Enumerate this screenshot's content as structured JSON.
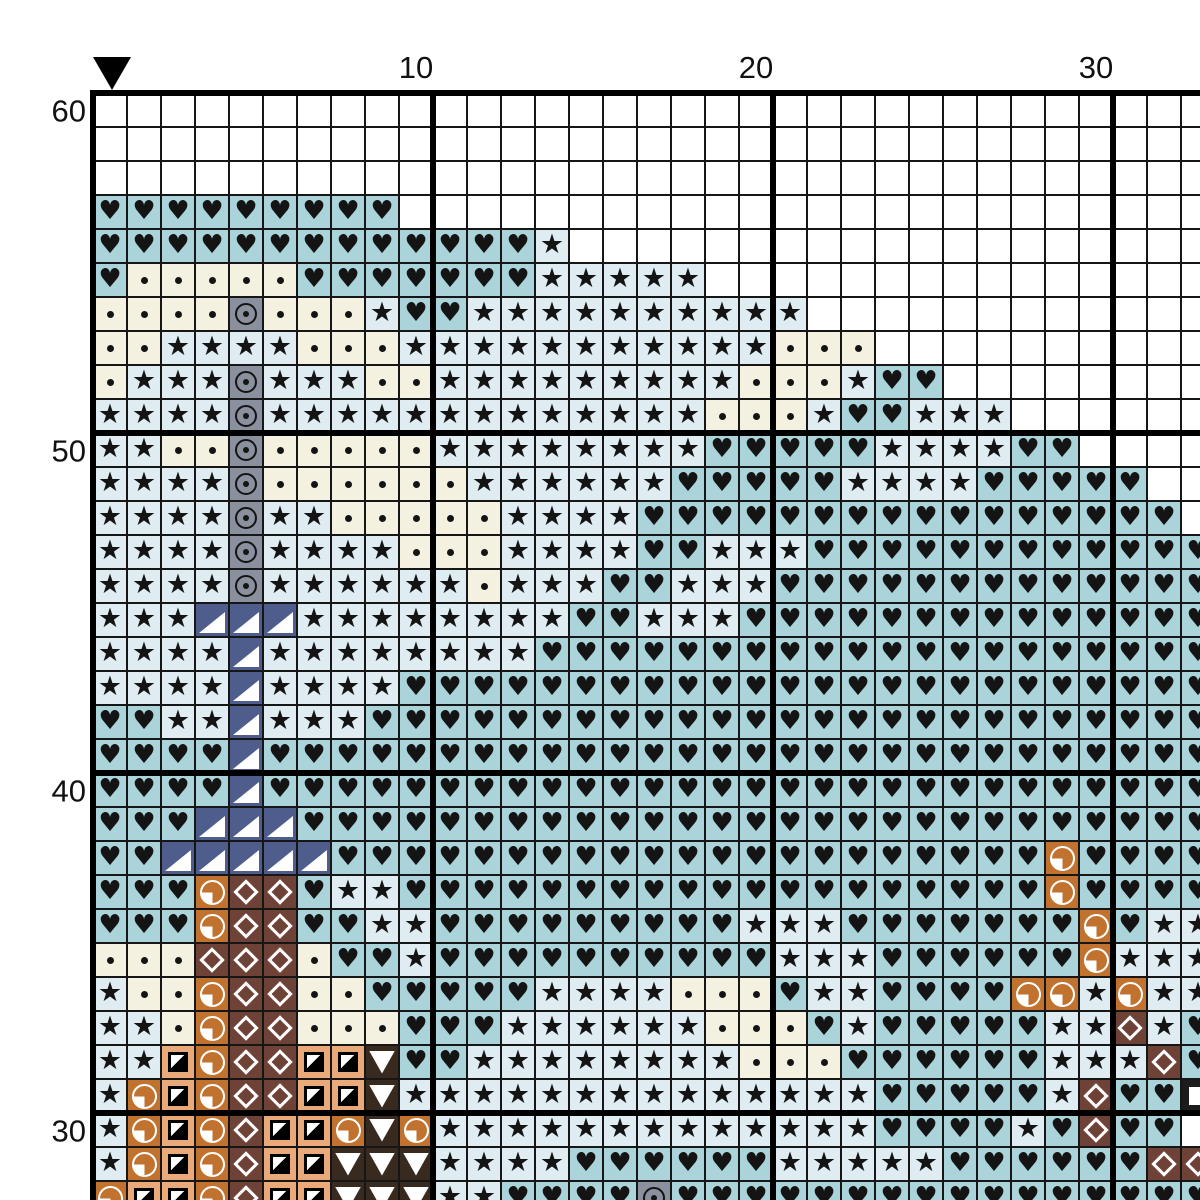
{
  "page": {
    "kind": "cross-stitch pattern chart",
    "background": "#ffffff",
    "gridline_color": "#161616",
    "thick_gridline_color": "#000000"
  },
  "marker": {
    "name": "center-column-marker",
    "shape": "down-triangle",
    "color": "#000000",
    "column": 1
  },
  "chart_data": {
    "type": "heatmap",
    "description": "cross-stitch symbol grid, 33x33 visible cells, bold ruled line every 10 stitches",
    "axis_top": [
      {
        "label": "10",
        "column": 10
      },
      {
        "label": "20",
        "column": 20
      },
      {
        "label": "30",
        "column": 30
      }
    ],
    "axis_left": [
      {
        "label": "60",
        "visible_row": 1
      },
      {
        "label": "50",
        "visible_row": 11
      },
      {
        "label": "40",
        "visible_row": 21
      },
      {
        "label": "30",
        "visible_row": 31
      }
    ],
    "thick_line_every": 10,
    "codes": {
      ".": {
        "name": "empty",
        "bg": "#ffffff",
        "symbol": "none",
        "symbol_color": ""
      },
      "h": {
        "name": "heart-stitch",
        "bg": "#aad4da",
        "symbol": "heart",
        "symbol_color": "#141414"
      },
      "s": {
        "name": "star-stitch",
        "bg": "#dfecf2",
        "symbol": "star",
        "symbol_color": "#141414"
      },
      "d": {
        "name": "dot-stitch",
        "bg": "#f5f1e1",
        "symbol": "dot",
        "symbol_color": "#141414"
      },
      "o": {
        "name": "circled-dot-stitch",
        "bg": "#8a909e",
        "symbol": "circle-dot",
        "symbol_color": "#141414"
      },
      "t": {
        "name": "corner-triangle-stitch",
        "bg": "#4e5d8c",
        "symbol": "corner-triangle",
        "symbol_color": "#ffffff"
      },
      "q": {
        "name": "quarter-circle-stitch",
        "bg": "#c1722f",
        "symbol": "quarter-circle",
        "symbol_color": "#ffffff"
      },
      "D": {
        "name": "diamond-stitch",
        "bg": "#6f4238",
        "symbol": "diamond-outline",
        "symbol_color": "#ffffff"
      },
      "Q": {
        "name": "split-square-stitch",
        "bg": "#eaa978",
        "symbol": "split-square",
        "symbol_color": "#000000"
      },
      "v": {
        "name": "down-triangle-stitch",
        "bg": "#392a1f",
        "symbol": "down-triangle",
        "symbol_color": "#ffffff"
      },
      "x": {
        "name": "square-stitch",
        "bg": "#1c1c1c",
        "symbol": "square",
        "symbol_color": "#ffffff"
      }
    },
    "rows": [
      ".................................",
      ".................................",
      ".................................",
      "hhhhhhhhh........................",
      "hhhhhhhhhhhhhs...................",
      "hdddddhhhhhhhsssss...............",
      "ddddodddshhssssssssss............",
      "ddssssdddsssssssssssddd..........",
      "dsssosssddsssssssssdddshh........",
      "ssssosssssssssssssdddshhsss......",
      "ssddodddddsssssssshhhhhsssshh....",
      "ssssoddddddsssssshhhhhsssshhhhh..",
      "ssssossdddddsssshhhhhhhhhhhhhhhh.",
      "ssssossssdddsssshhssshhhhhhhhhhhh",
      "ssssossssssdssshhssshhhhhhhhhhhhh",
      "ssstttsssssssshhssshhhhhhhhhhhhhh",
      "sssstsssssssshhhhhhhhhhhhhhhhhhhh",
      "sssstsssshhhhhhhhhhhhhhhhhhhhhhhh",
      "hhsstssshhhhhhhhhhhhhhhhhhhhhhhhh",
      "hhhhthhhhhhhhhhhhhhhhhhhhhhhhhhhh",
      "hhhhthhhhhhhhhhhhhhhhhhhhhhhhhhhh",
      "hhhttthhhhhhhhhhhhhhhhhhhhhhhhhhh",
      "hhttttthhhhhhhhhhhhhhhhhhhhhqhhhh",
      "hhhqDDhsshhhhhhhhhhhhhhhhhhhqhhhh",
      "hhhqDDhhsshhhhhhhhhssshhhhhhhqhss",
      "dddDDDdhhshhhhhhhhhhssshhhhhhqsss",
      "sddqDDddhhhhhssssdddhsshhhhqqsqss",
      "ssdqDDdddhhhssssssdddhshhhhhssDsh",
      "ssQqDDQQvhhssssssssdddhhhhhhsssDh",
      "sqQqDDQQvsssssssssssssshhhhhsDhhx",
      "sqQqDQQqvqssssssssssssshhhhshDhh",
      "sqQqDQQvvvsssshhhhhhssssshhhhhhDD",
      "qQQqDQQvvvsshhhhohhhhhhhhhhhhhhhh"
    ]
  }
}
